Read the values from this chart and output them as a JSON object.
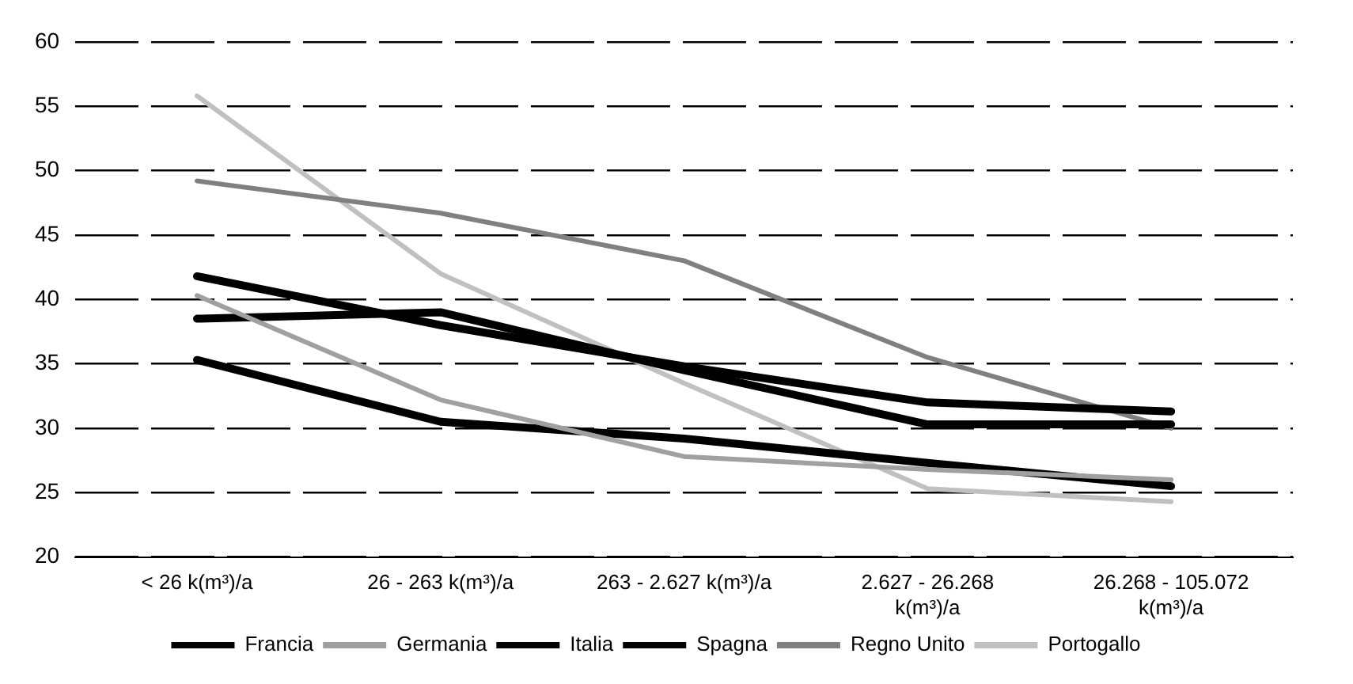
{
  "chart_data": {
    "type": "line",
    "categories": [
      "< 26 k(m³)/a",
      "26 - 263 k(m³)/a",
      "263 - 2.627 k(m³)/a",
      "2.627 - 26.268 k(m³)/a",
      "26.268 - 105.072 k(m³)/a"
    ],
    "series": [
      {
        "name": "Francia",
        "color": "#000000",
        "values": [
          41.8,
          38,
          34.8,
          32,
          31.3
        ]
      },
      {
        "name": "Germania",
        "color": "#a0a0a0",
        "values": [
          40.3,
          32.2,
          27.8,
          26.8,
          26
        ]
      },
      {
        "name": "Italia",
        "color": "#000000",
        "values": [
          38.5,
          39,
          34.5,
          30.3,
          30.3
        ]
      },
      {
        "name": "Spagna",
        "color": "#000000",
        "values": [
          35.3,
          30.5,
          29.2,
          27.3,
          25.5
        ]
      },
      {
        "name": "Regno Unito",
        "color": "#808080",
        "values": [
          49.2,
          46.7,
          43,
          35.5,
          30
        ]
      },
      {
        "name": "Portogallo",
        "color": "#c0c0c0",
        "values": [
          55.8,
          42,
          33.5,
          25.3,
          24.3
        ]
      }
    ],
    "ylim": [
      20,
      60
    ],
    "yticks": [
      20,
      25,
      30,
      35,
      40,
      45,
      50,
      55,
      60
    ],
    "grid": "y",
    "legend": "bottom",
    "marker": "none",
    "line_style": "solid"
  }
}
